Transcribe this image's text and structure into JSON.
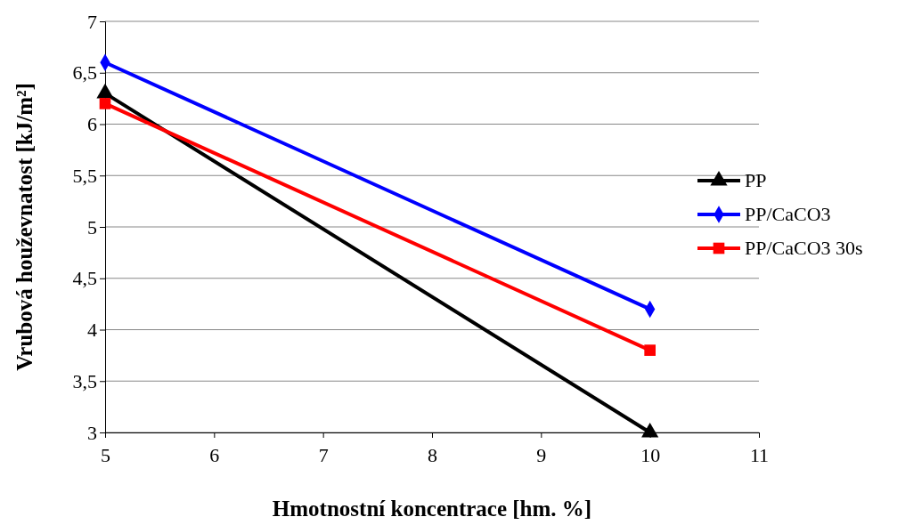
{
  "chart_data": {
    "type": "line",
    "xlabel": "Hmotnostní koncentrace [hm. %]",
    "ylabel": "Vrubová houževnatost [kJ/m²]",
    "x": [
      5,
      10
    ],
    "series": [
      {
        "name": "PP",
        "color": "#000000",
        "marker": "triangle",
        "values": [
          6.3,
          3.0
        ]
      },
      {
        "name": "PP/CaCO3",
        "color": "#0000ff",
        "marker": "diamond",
        "values": [
          6.6,
          4.2
        ]
      },
      {
        "name": "PP/CaCO3 30s",
        "color": "#ff0000",
        "marker": "square",
        "values": [
          6.2,
          3.8
        ]
      }
    ],
    "xlim": [
      5,
      11
    ],
    "xticks": [
      5,
      6,
      7,
      8,
      9,
      10,
      11
    ],
    "ylim": [
      3,
      7
    ],
    "yticks": [
      3,
      {
        "value": 3.5,
        "label": "3,5"
      },
      4,
      {
        "value": 4.5,
        "label": "4,5"
      },
      5,
      {
        "value": 5.5,
        "label": "5,5"
      },
      6,
      {
        "value": 6.5,
        "label": "6,5"
      },
      7
    ],
    "grid": "y",
    "legend": "right"
  }
}
